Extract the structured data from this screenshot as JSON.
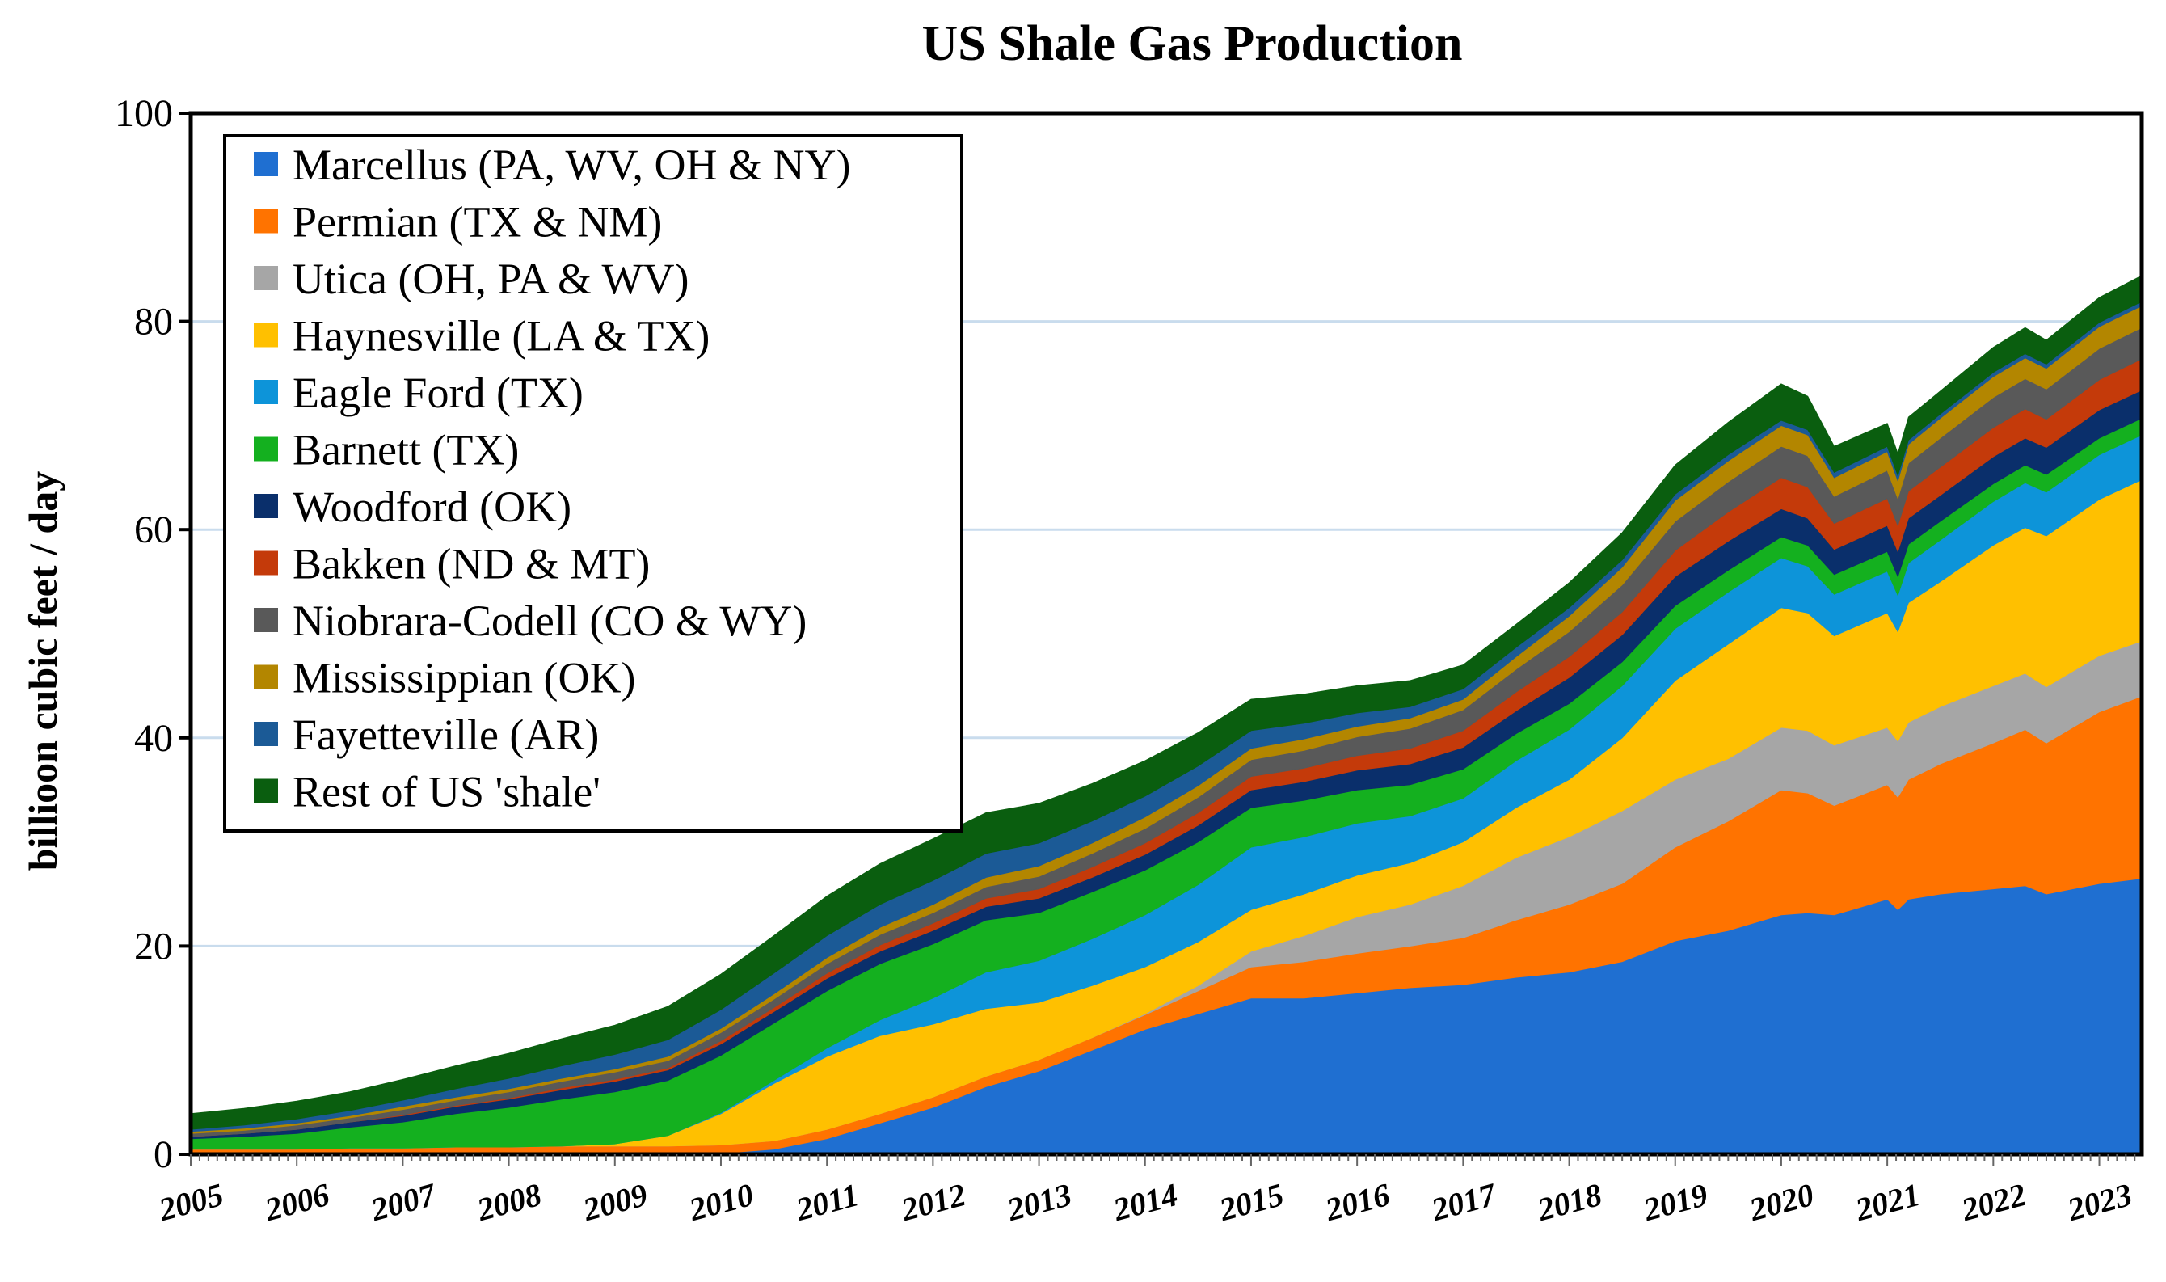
{
  "chart_data": {
    "type": "area",
    "stacked": true,
    "title": "US Shale Gas Production",
    "xlabel": "",
    "ylabel": "billioon cubic feet / day",
    "xlim": [
      2005,
      2023.4
    ],
    "ylim": [
      0,
      100
    ],
    "yticks": [
      "0",
      "20",
      "40",
      "60",
      "80",
      "100"
    ],
    "xticks": [
      "2005",
      "2006",
      "2007",
      "2008",
      "2009",
      "2010",
      "2011",
      "2012",
      "2013",
      "2014",
      "2015",
      "2016",
      "2017",
      "2018",
      "2019",
      "2020",
      "2021",
      "2022",
      "2023"
    ],
    "grid": "horizontal",
    "legend_position": "top-left",
    "x": [
      2005,
      2005.5,
      2006,
      2006.5,
      2007,
      2007.5,
      2008,
      2008.5,
      2009,
      2009.5,
      2010,
      2010.5,
      2011,
      2011.5,
      2012,
      2012.5,
      2013,
      2013.5,
      2014,
      2014.5,
      2015,
      2015.5,
      2016,
      2016.5,
      2017,
      2017.5,
      2018,
      2018.5,
      2019,
      2019.5,
      2020,
      2020.25,
      2020.5,
      2021,
      2021.1,
      2021.2,
      2021.5,
      2022,
      2022.3,
      2022.5,
      2023,
      2023.4
    ],
    "series": [
      {
        "name": "Marcellus (PA, WV, OH & NY)",
        "color": "#1f6fd1",
        "values": [
          0,
          0,
          0,
          0,
          0,
          0,
          0,
          0,
          0,
          0,
          0.1,
          0.5,
          1.5,
          3.0,
          4.5,
          6.5,
          8.0,
          10.0,
          12.0,
          13.5,
          15.0,
          15.0,
          15.5,
          16.0,
          16.3,
          17.0,
          17.5,
          18.5,
          20.5,
          21.5,
          23.0,
          23.2,
          23.0,
          24.5,
          23.5,
          24.5,
          25.0,
          25.5,
          25.8,
          25.0,
          26.0,
          26.5
        ]
      },
      {
        "name": "Permian (TX & NM)",
        "color": "#ff7300",
        "values": [
          0.5,
          0.5,
          0.5,
          0.6,
          0.6,
          0.7,
          0.7,
          0.8,
          0.8,
          0.8,
          0.8,
          0.8,
          0.9,
          0.9,
          1.0,
          1.0,
          1.1,
          1.2,
          1.4,
          2.2,
          3.0,
          3.5,
          3.8,
          4.0,
          4.5,
          5.5,
          6.5,
          7.5,
          9.0,
          10.5,
          12.0,
          11.5,
          10.5,
          11.0,
          10.8,
          11.5,
          12.5,
          14.0,
          15.0,
          14.5,
          16.5,
          17.5
        ]
      },
      {
        "name": "Utica (OH, PA & WV)",
        "color": "#a6a6a6",
        "values": [
          0,
          0,
          0,
          0,
          0,
          0,
          0,
          0,
          0,
          0,
          0,
          0,
          0,
          0,
          0,
          0,
          0,
          0,
          0.1,
          0.5,
          1.5,
          2.5,
          3.5,
          4.0,
          5.0,
          6.0,
          6.5,
          7.0,
          6.5,
          6.0,
          6.0,
          6.0,
          5.8,
          5.5,
          5.4,
          5.5,
          5.5,
          5.5,
          5.4,
          5.4,
          5.4,
          5.3
        ]
      },
      {
        "name": "Haynesville (LA & TX)",
        "color": "#ffc000",
        "values": [
          0,
          0,
          0,
          0,
          0,
          0,
          0,
          0,
          0.2,
          1.0,
          3.0,
          5.5,
          7.0,
          7.5,
          7.0,
          6.5,
          5.5,
          5.0,
          4.5,
          4.2,
          4.0,
          4.0,
          4.0,
          4.0,
          4.2,
          4.8,
          5.5,
          7.0,
          9.5,
          11.0,
          11.5,
          11.3,
          10.5,
          11.0,
          10.5,
          11.5,
          12.0,
          13.5,
          14.0,
          14.5,
          15.0,
          15.5
        ]
      },
      {
        "name": "Eagle Ford (TX)",
        "color": "#0d94d9",
        "values": [
          0,
          0,
          0,
          0,
          0,
          0,
          0,
          0,
          0,
          0,
          0.1,
          0.3,
          0.8,
          1.5,
          2.5,
          3.5,
          4.0,
          4.5,
          5.0,
          5.5,
          6.0,
          5.5,
          5.0,
          4.5,
          4.2,
          4.5,
          4.8,
          5.0,
          5.0,
          5.0,
          4.8,
          4.5,
          4.0,
          4.0,
          3.5,
          3.8,
          4.0,
          4.2,
          4.3,
          4.2,
          4.3,
          4.3
        ]
      },
      {
        "name": "Barnett (TX)",
        "color": "#14b01f",
        "values": [
          1.0,
          1.2,
          1.5,
          2.0,
          2.5,
          3.2,
          3.8,
          4.5,
          5.0,
          5.3,
          5.5,
          5.5,
          5.5,
          5.4,
          5.2,
          5.0,
          4.6,
          4.5,
          4.3,
          4.1,
          3.8,
          3.5,
          3.2,
          3.0,
          2.8,
          2.6,
          2.5,
          2.3,
          2.2,
          2.1,
          2.0,
          2.0,
          1.9,
          1.9,
          1.8,
          1.8,
          1.8,
          1.7,
          1.7,
          1.7,
          1.6,
          1.6
        ]
      },
      {
        "name": "Woodford (OK)",
        "color": "#0a2f6b",
        "values": [
          0.2,
          0.3,
          0.4,
          0.5,
          0.6,
          0.7,
          0.8,
          0.9,
          1.0,
          1.0,
          1.1,
          1.1,
          1.2,
          1.2,
          1.3,
          1.3,
          1.4,
          1.4,
          1.5,
          1.6,
          1.7,
          1.8,
          1.9,
          2.0,
          2.1,
          2.2,
          2.5,
          2.6,
          2.8,
          2.8,
          2.7,
          2.6,
          2.4,
          2.5,
          2.4,
          2.5,
          2.5,
          2.6,
          2.6,
          2.6,
          2.7,
          2.7
        ]
      },
      {
        "name": "Bakken (ND & MT)",
        "color": "#c43a0a",
        "values": [
          0,
          0,
          0,
          0,
          0.1,
          0.1,
          0.1,
          0.2,
          0.2,
          0.2,
          0.3,
          0.4,
          0.5,
          0.6,
          0.7,
          0.8,
          0.9,
          1.0,
          1.1,
          1.2,
          1.3,
          1.3,
          1.4,
          1.5,
          1.6,
          1.8,
          2.0,
          2.2,
          2.5,
          2.8,
          3.0,
          3.0,
          2.5,
          2.6,
          2.5,
          2.6,
          2.7,
          2.8,
          2.8,
          2.7,
          2.9,
          3.0
        ]
      },
      {
        "name": "Niobrara-Codell (CO & WY)",
        "color": "#595959",
        "values": [
          0.3,
          0.3,
          0.4,
          0.4,
          0.5,
          0.5,
          0.6,
          0.6,
          0.7,
          0.7,
          0.8,
          0.8,
          0.9,
          1.0,
          1.0,
          1.1,
          1.2,
          1.3,
          1.4,
          1.5,
          1.6,
          1.7,
          1.8,
          1.9,
          2.0,
          2.2,
          2.4,
          2.6,
          2.8,
          2.9,
          3.0,
          3.0,
          2.6,
          2.7,
          2.6,
          2.7,
          2.8,
          2.9,
          2.9,
          2.9,
          3.0,
          3.0
        ]
      },
      {
        "name": "Mississippian (OK)",
        "color": "#b38600",
        "values": [
          0.2,
          0.2,
          0.2,
          0.2,
          0.3,
          0.3,
          0.3,
          0.3,
          0.3,
          0.4,
          0.4,
          0.5,
          0.6,
          0.7,
          0.8,
          0.9,
          1.0,
          1.0,
          1.1,
          1.1,
          1.1,
          1.1,
          1.0,
          1.0,
          1.0,
          1.2,
          1.5,
          1.7,
          2.0,
          2.0,
          2.0,
          2.0,
          1.8,
          1.8,
          1.7,
          1.8,
          1.9,
          2.0,
          2.0,
          2.0,
          2.1,
          2.1
        ]
      },
      {
        "name": "Fayetteville (AR)",
        "color": "#1b5a96",
        "values": [
          0.2,
          0.3,
          0.4,
          0.5,
          0.6,
          0.8,
          1.0,
          1.2,
          1.4,
          1.6,
          1.8,
          2.0,
          2.1,
          2.2,
          2.3,
          2.3,
          2.2,
          2.1,
          2.0,
          1.9,
          1.7,
          1.5,
          1.3,
          1.1,
          1.0,
          0.9,
          0.8,
          0.7,
          0.6,
          0.6,
          0.5,
          0.5,
          0.5,
          0.5,
          0.5,
          0.4,
          0.4,
          0.4,
          0.4,
          0.4,
          0.4,
          0.4
        ]
      },
      {
        "name": "Rest of US 'shale'",
        "color": "#0a5e0f",
        "values": [
          1.5,
          1.6,
          1.7,
          1.8,
          2.0,
          2.2,
          2.4,
          2.6,
          2.8,
          3.2,
          3.4,
          3.6,
          3.8,
          3.9,
          4.0,
          3.9,
          3.8,
          3.6,
          3.4,
          3.2,
          3.0,
          2.8,
          2.6,
          2.5,
          2.3,
          2.2,
          2.4,
          2.6,
          2.8,
          3.1,
          3.5,
          3.2,
          2.5,
          2.2,
          2.1,
          2.2,
          2.2,
          2.4,
          2.5,
          2.3,
          2.4,
          2.5
        ]
      }
    ]
  }
}
